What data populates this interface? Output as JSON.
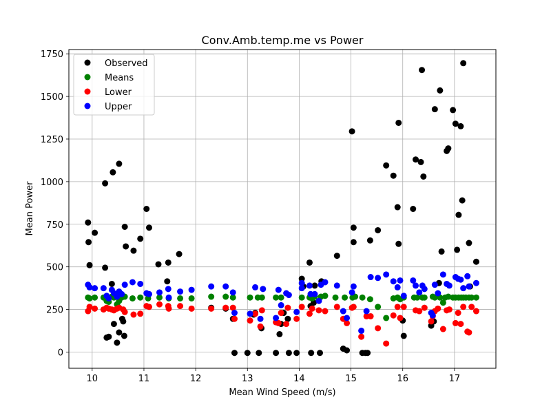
{
  "chart_data": {
    "type": "scatter",
    "title": "Conv.Amb.temp.me vs Power",
    "xlabel": "Mean Wind Speed (m/s)",
    "ylabel": "Mean Power",
    "xlim": [
      9.55,
      17.8
    ],
    "ylim": [
      -95,
      1775
    ],
    "x_ticks": [
      10,
      11,
      12,
      13,
      14,
      15,
      16,
      17
    ],
    "y_ticks": [
      0,
      250,
      500,
      750,
      1000,
      1250,
      1500,
      1750
    ],
    "grid": true,
    "legend_position": "top-left",
    "series": [
      {
        "name": "Observed",
        "color": "#000000",
        "points": [
          [
            9.92,
            760
          ],
          [
            9.93,
            645
          ],
          [
            9.95,
            510
          ],
          [
            10.05,
            700
          ],
          [
            10.25,
            990
          ],
          [
            10.25,
            495
          ],
          [
            10.28,
            85
          ],
          [
            10.32,
            90
          ],
          [
            10.38,
            400
          ],
          [
            10.4,
            1055
          ],
          [
            10.42,
            165
          ],
          [
            10.45,
            330
          ],
          [
            10.48,
            55
          ],
          [
            10.52,
            1105
          ],
          [
            10.52,
            115
          ],
          [
            10.58,
            195
          ],
          [
            10.6,
            180
          ],
          [
            10.62,
            95
          ],
          [
            10.63,
            735
          ],
          [
            10.65,
            620
          ],
          [
            10.8,
            595
          ],
          [
            10.93,
            665
          ],
          [
            11.05,
            840
          ],
          [
            11.1,
            730
          ],
          [
            11.28,
            515
          ],
          [
            11.45,
            415
          ],
          [
            11.47,
            525
          ],
          [
            11.68,
            575
          ],
          [
            12.3,
            260
          ],
          [
            12.58,
            255
          ],
          [
            12.72,
            195
          ],
          [
            12.75,
            -5
          ],
          [
            13.0,
            -5
          ],
          [
            13.12,
            220
          ],
          [
            13.15,
            230
          ],
          [
            13.22,
            -5
          ],
          [
            13.27,
            140
          ],
          [
            13.55,
            -5
          ],
          [
            13.62,
            105
          ],
          [
            13.65,
            165
          ],
          [
            13.7,
            230
          ],
          [
            13.78,
            195
          ],
          [
            13.8,
            -5
          ],
          [
            13.95,
            -5
          ],
          [
            14.05,
            430
          ],
          [
            14.08,
            385
          ],
          [
            14.2,
            525
          ],
          [
            14.22,
            270
          ],
          [
            14.23,
            -5
          ],
          [
            14.28,
            290
          ],
          [
            14.3,
            390
          ],
          [
            14.4,
            -5
          ],
          [
            14.43,
            415
          ],
          [
            14.73,
            565
          ],
          [
            14.85,
            20
          ],
          [
            14.92,
            10
          ],
          [
            15.02,
            1295
          ],
          [
            15.05,
            730
          ],
          [
            15.05,
            645
          ],
          [
            15.22,
            -5
          ],
          [
            15.28,
            -5
          ],
          [
            15.32,
            -5
          ],
          [
            15.37,
            655
          ],
          [
            15.52,
            715
          ],
          [
            15.68,
            1095
          ],
          [
            15.82,
            1035
          ],
          [
            15.9,
            850
          ],
          [
            15.92,
            1345
          ],
          [
            15.92,
            635
          ],
          [
            16.0,
            185
          ],
          [
            16.02,
            95
          ],
          [
            16.2,
            840
          ],
          [
            16.25,
            1130
          ],
          [
            16.35,
            1115
          ],
          [
            16.37,
            1655
          ],
          [
            16.4,
            1030
          ],
          [
            16.55,
            155
          ],
          [
            16.6,
            180
          ],
          [
            16.62,
            1425
          ],
          [
            16.7,
            405
          ],
          [
            16.72,
            1535
          ],
          [
            16.75,
            590
          ],
          [
            16.85,
            1180
          ],
          [
            16.88,
            1195
          ],
          [
            16.97,
            1420
          ],
          [
            17.02,
            1340
          ],
          [
            17.05,
            600
          ],
          [
            17.08,
            805
          ],
          [
            17.12,
            1325
          ],
          [
            17.15,
            890
          ],
          [
            17.17,
            1695
          ],
          [
            17.28,
            640
          ],
          [
            17.3,
            385
          ],
          [
            17.42,
            530
          ]
        ]
      },
      {
        "name": "Means",
        "color": "#008000",
        "points": [
          [
            9.92,
            320
          ],
          [
            9.95,
            315
          ],
          [
            10.05,
            320
          ],
          [
            10.22,
            320
          ],
          [
            10.28,
            300
          ],
          [
            10.32,
            295
          ],
          [
            10.38,
            325
          ],
          [
            10.42,
            320
          ],
          [
            10.48,
            280
          ],
          [
            10.52,
            300
          ],
          [
            10.57,
            320
          ],
          [
            10.63,
            325
          ],
          [
            10.78,
            315
          ],
          [
            10.93,
            320
          ],
          [
            11.08,
            315
          ],
          [
            11.3,
            320
          ],
          [
            11.48,
            315
          ],
          [
            11.7,
            315
          ],
          [
            11.92,
            315
          ],
          [
            12.3,
            325
          ],
          [
            12.58,
            325
          ],
          [
            12.72,
            320
          ],
          [
            13.05,
            320
          ],
          [
            13.2,
            320
          ],
          [
            13.28,
            320
          ],
          [
            13.55,
            320
          ],
          [
            13.65,
            320
          ],
          [
            14.05,
            320
          ],
          [
            14.2,
            320
          ],
          [
            14.25,
            315
          ],
          [
            14.3,
            325
          ],
          [
            14.42,
            325
          ],
          [
            14.5,
            330
          ],
          [
            14.7,
            320
          ],
          [
            14.88,
            320
          ],
          [
            15.03,
            320
          ],
          [
            15.08,
            325
          ],
          [
            15.22,
            320
          ],
          [
            15.37,
            310
          ],
          [
            15.52,
            265
          ],
          [
            15.68,
            200
          ],
          [
            15.82,
            315
          ],
          [
            15.9,
            320
          ],
          [
            15.95,
            310
          ],
          [
            16.02,
            320
          ],
          [
            16.22,
            320
          ],
          [
            16.28,
            320
          ],
          [
            16.38,
            320
          ],
          [
            16.42,
            320
          ],
          [
            16.58,
            325
          ],
          [
            16.62,
            320
          ],
          [
            16.72,
            320
          ],
          [
            16.78,
            290
          ],
          [
            16.82,
            320
          ],
          [
            16.88,
            325
          ],
          [
            16.97,
            320
          ],
          [
            17.02,
            320
          ],
          [
            17.08,
            320
          ],
          [
            17.13,
            320
          ],
          [
            17.17,
            320
          ],
          [
            17.22,
            320
          ],
          [
            17.28,
            320
          ],
          [
            17.33,
            320
          ],
          [
            17.42,
            320
          ]
        ]
      },
      {
        "name": "Lower",
        "color": "#ff0000",
        "points": [
          [
            9.92,
            240
          ],
          [
            9.95,
            265
          ],
          [
            10.05,
            255
          ],
          [
            10.22,
            250
          ],
          [
            10.28,
            260
          ],
          [
            10.32,
            255
          ],
          [
            10.38,
            250
          ],
          [
            10.42,
            245
          ],
          [
            10.48,
            255
          ],
          [
            10.52,
            260
          ],
          [
            10.6,
            250
          ],
          [
            10.63,
            235
          ],
          [
            10.8,
            220
          ],
          [
            10.93,
            225
          ],
          [
            11.05,
            270
          ],
          [
            11.1,
            265
          ],
          [
            11.3,
            280
          ],
          [
            11.47,
            270
          ],
          [
            11.48,
            255
          ],
          [
            11.7,
            270
          ],
          [
            11.92,
            255
          ],
          [
            12.3,
            255
          ],
          [
            12.58,
            260
          ],
          [
            12.72,
            260
          ],
          [
            12.75,
            195
          ],
          [
            13.05,
            185
          ],
          [
            13.15,
            225
          ],
          [
            13.25,
            150
          ],
          [
            13.28,
            245
          ],
          [
            13.55,
            175
          ],
          [
            13.6,
            170
          ],
          [
            13.65,
            230
          ],
          [
            13.75,
            165
          ],
          [
            13.78,
            260
          ],
          [
            13.95,
            195
          ],
          [
            14.05,
            265
          ],
          [
            14.2,
            225
          ],
          [
            14.25,
            255
          ],
          [
            14.38,
            245
          ],
          [
            14.5,
            240
          ],
          [
            14.73,
            265
          ],
          [
            14.85,
            195
          ],
          [
            14.92,
            170
          ],
          [
            15.02,
            260
          ],
          [
            15.05,
            265
          ],
          [
            15.2,
            90
          ],
          [
            15.3,
            210
          ],
          [
            15.38,
            210
          ],
          [
            15.52,
            140
          ],
          [
            15.68,
            50
          ],
          [
            15.82,
            215
          ],
          [
            15.9,
            265
          ],
          [
            15.95,
            200
          ],
          [
            16.02,
            265
          ],
          [
            16.25,
            245
          ],
          [
            16.32,
            240
          ],
          [
            16.42,
            260
          ],
          [
            16.55,
            180
          ],
          [
            16.58,
            210
          ],
          [
            16.62,
            240
          ],
          [
            16.68,
            255
          ],
          [
            16.78,
            135
          ],
          [
            16.85,
            245
          ],
          [
            16.9,
            250
          ],
          [
            17.02,
            170
          ],
          [
            17.07,
            230
          ],
          [
            17.12,
            165
          ],
          [
            17.17,
            265
          ],
          [
            17.25,
            120
          ],
          [
            17.28,
            115
          ],
          [
            17.33,
            265
          ],
          [
            17.42,
            240
          ]
        ]
      },
      {
        "name": "Upper",
        "color": "#0000ff",
        "points": [
          [
            9.92,
            395
          ],
          [
            9.95,
            380
          ],
          [
            10.05,
            375
          ],
          [
            10.22,
            375
          ],
          [
            10.28,
            330
          ],
          [
            10.32,
            315
          ],
          [
            10.38,
            365
          ],
          [
            10.42,
            345
          ],
          [
            10.48,
            325
          ],
          [
            10.52,
            355
          ],
          [
            10.57,
            340
          ],
          [
            10.63,
            395
          ],
          [
            10.78,
            410
          ],
          [
            10.93,
            400
          ],
          [
            11.05,
            345
          ],
          [
            11.1,
            340
          ],
          [
            11.3,
            350
          ],
          [
            11.47,
            370
          ],
          [
            11.48,
            320
          ],
          [
            11.7,
            355
          ],
          [
            11.92,
            365
          ],
          [
            12.3,
            385
          ],
          [
            12.58,
            385
          ],
          [
            12.72,
            350
          ],
          [
            12.75,
            230
          ],
          [
            13.05,
            225
          ],
          [
            13.15,
            380
          ],
          [
            13.25,
            195
          ],
          [
            13.3,
            370
          ],
          [
            13.55,
            200
          ],
          [
            13.6,
            365
          ],
          [
            13.65,
            275
          ],
          [
            13.75,
            345
          ],
          [
            13.8,
            335
          ],
          [
            13.95,
            235
          ],
          [
            14.05,
            405
          ],
          [
            14.05,
            375
          ],
          [
            14.2,
            390
          ],
          [
            14.22,
            340
          ],
          [
            14.3,
            340
          ],
          [
            14.38,
            300
          ],
          [
            14.42,
            395
          ],
          [
            14.5,
            410
          ],
          [
            14.73,
            390
          ],
          [
            14.85,
            240
          ],
          [
            14.92,
            200
          ],
          [
            15.02,
            350
          ],
          [
            15.05,
            385
          ],
          [
            15.2,
            125
          ],
          [
            15.3,
            240
          ],
          [
            15.38,
            440
          ],
          [
            15.52,
            435
          ],
          [
            15.68,
            455
          ],
          [
            15.82,
            415
          ],
          [
            15.9,
            380
          ],
          [
            15.95,
            420
          ],
          [
            16.02,
            330
          ],
          [
            16.2,
            420
          ],
          [
            16.25,
            390
          ],
          [
            16.32,
            350
          ],
          [
            16.38,
            390
          ],
          [
            16.42,
            370
          ],
          [
            16.55,
            230
          ],
          [
            16.58,
            215
          ],
          [
            16.62,
            395
          ],
          [
            16.68,
            345
          ],
          [
            16.78,
            455
          ],
          [
            16.85,
            400
          ],
          [
            16.9,
            390
          ],
          [
            17.02,
            440
          ],
          [
            17.07,
            430
          ],
          [
            17.12,
            425
          ],
          [
            17.17,
            375
          ],
          [
            17.25,
            445
          ],
          [
            17.28,
            385
          ],
          [
            17.42,
            405
          ]
        ]
      }
    ]
  }
}
